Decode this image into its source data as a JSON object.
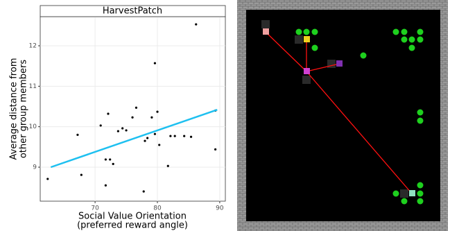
{
  "chart_data": {
    "type": "scatter",
    "title": "HarvestPatch",
    "xlabel": [
      "Social Value Orientation",
      "(preferred reward angle)"
    ],
    "ylabel": [
      "Average distance from",
      "other group members"
    ],
    "x": [
      62.4,
      67.2,
      67.8,
      70.9,
      71.7,
      71.7,
      72.1,
      72.4,
      72.9,
      73.7,
      74.4,
      75.0,
      76.0,
      76.6,
      77.8,
      78.0,
      78.4,
      79.1,
      79.6,
      79.6,
      80.0,
      80.3,
      81.7,
      82.1,
      82.8,
      84.3,
      85.4,
      86.2,
      89.3,
      89.3
    ],
    "values": [
      8.71,
      9.8,
      8.81,
      10.03,
      9.19,
      8.55,
      10.32,
      9.19,
      9.08,
      9.89,
      9.96,
      9.91,
      10.23,
      10.47,
      8.4,
      9.65,
      9.72,
      10.23,
      11.57,
      9.82,
      10.37,
      9.55,
      9.03,
      9.77,
      9.77,
      9.77,
      9.75,
      12.53,
      10.4,
      9.44
    ],
    "color": "#000000",
    "trend": {
      "x": [
        62.9,
        89.6
      ],
      "values": [
        9.0,
        10.42
      ],
      "color": "#1ec0f0"
    },
    "xlim": [
      61.2,
      90.9
    ],
    "xticks": [
      70,
      80,
      90
    ],
    "ylim": [
      8.16,
      12.72
    ],
    "yticks": [
      9,
      10,
      11,
      12
    ],
    "grid": true
  }
}
